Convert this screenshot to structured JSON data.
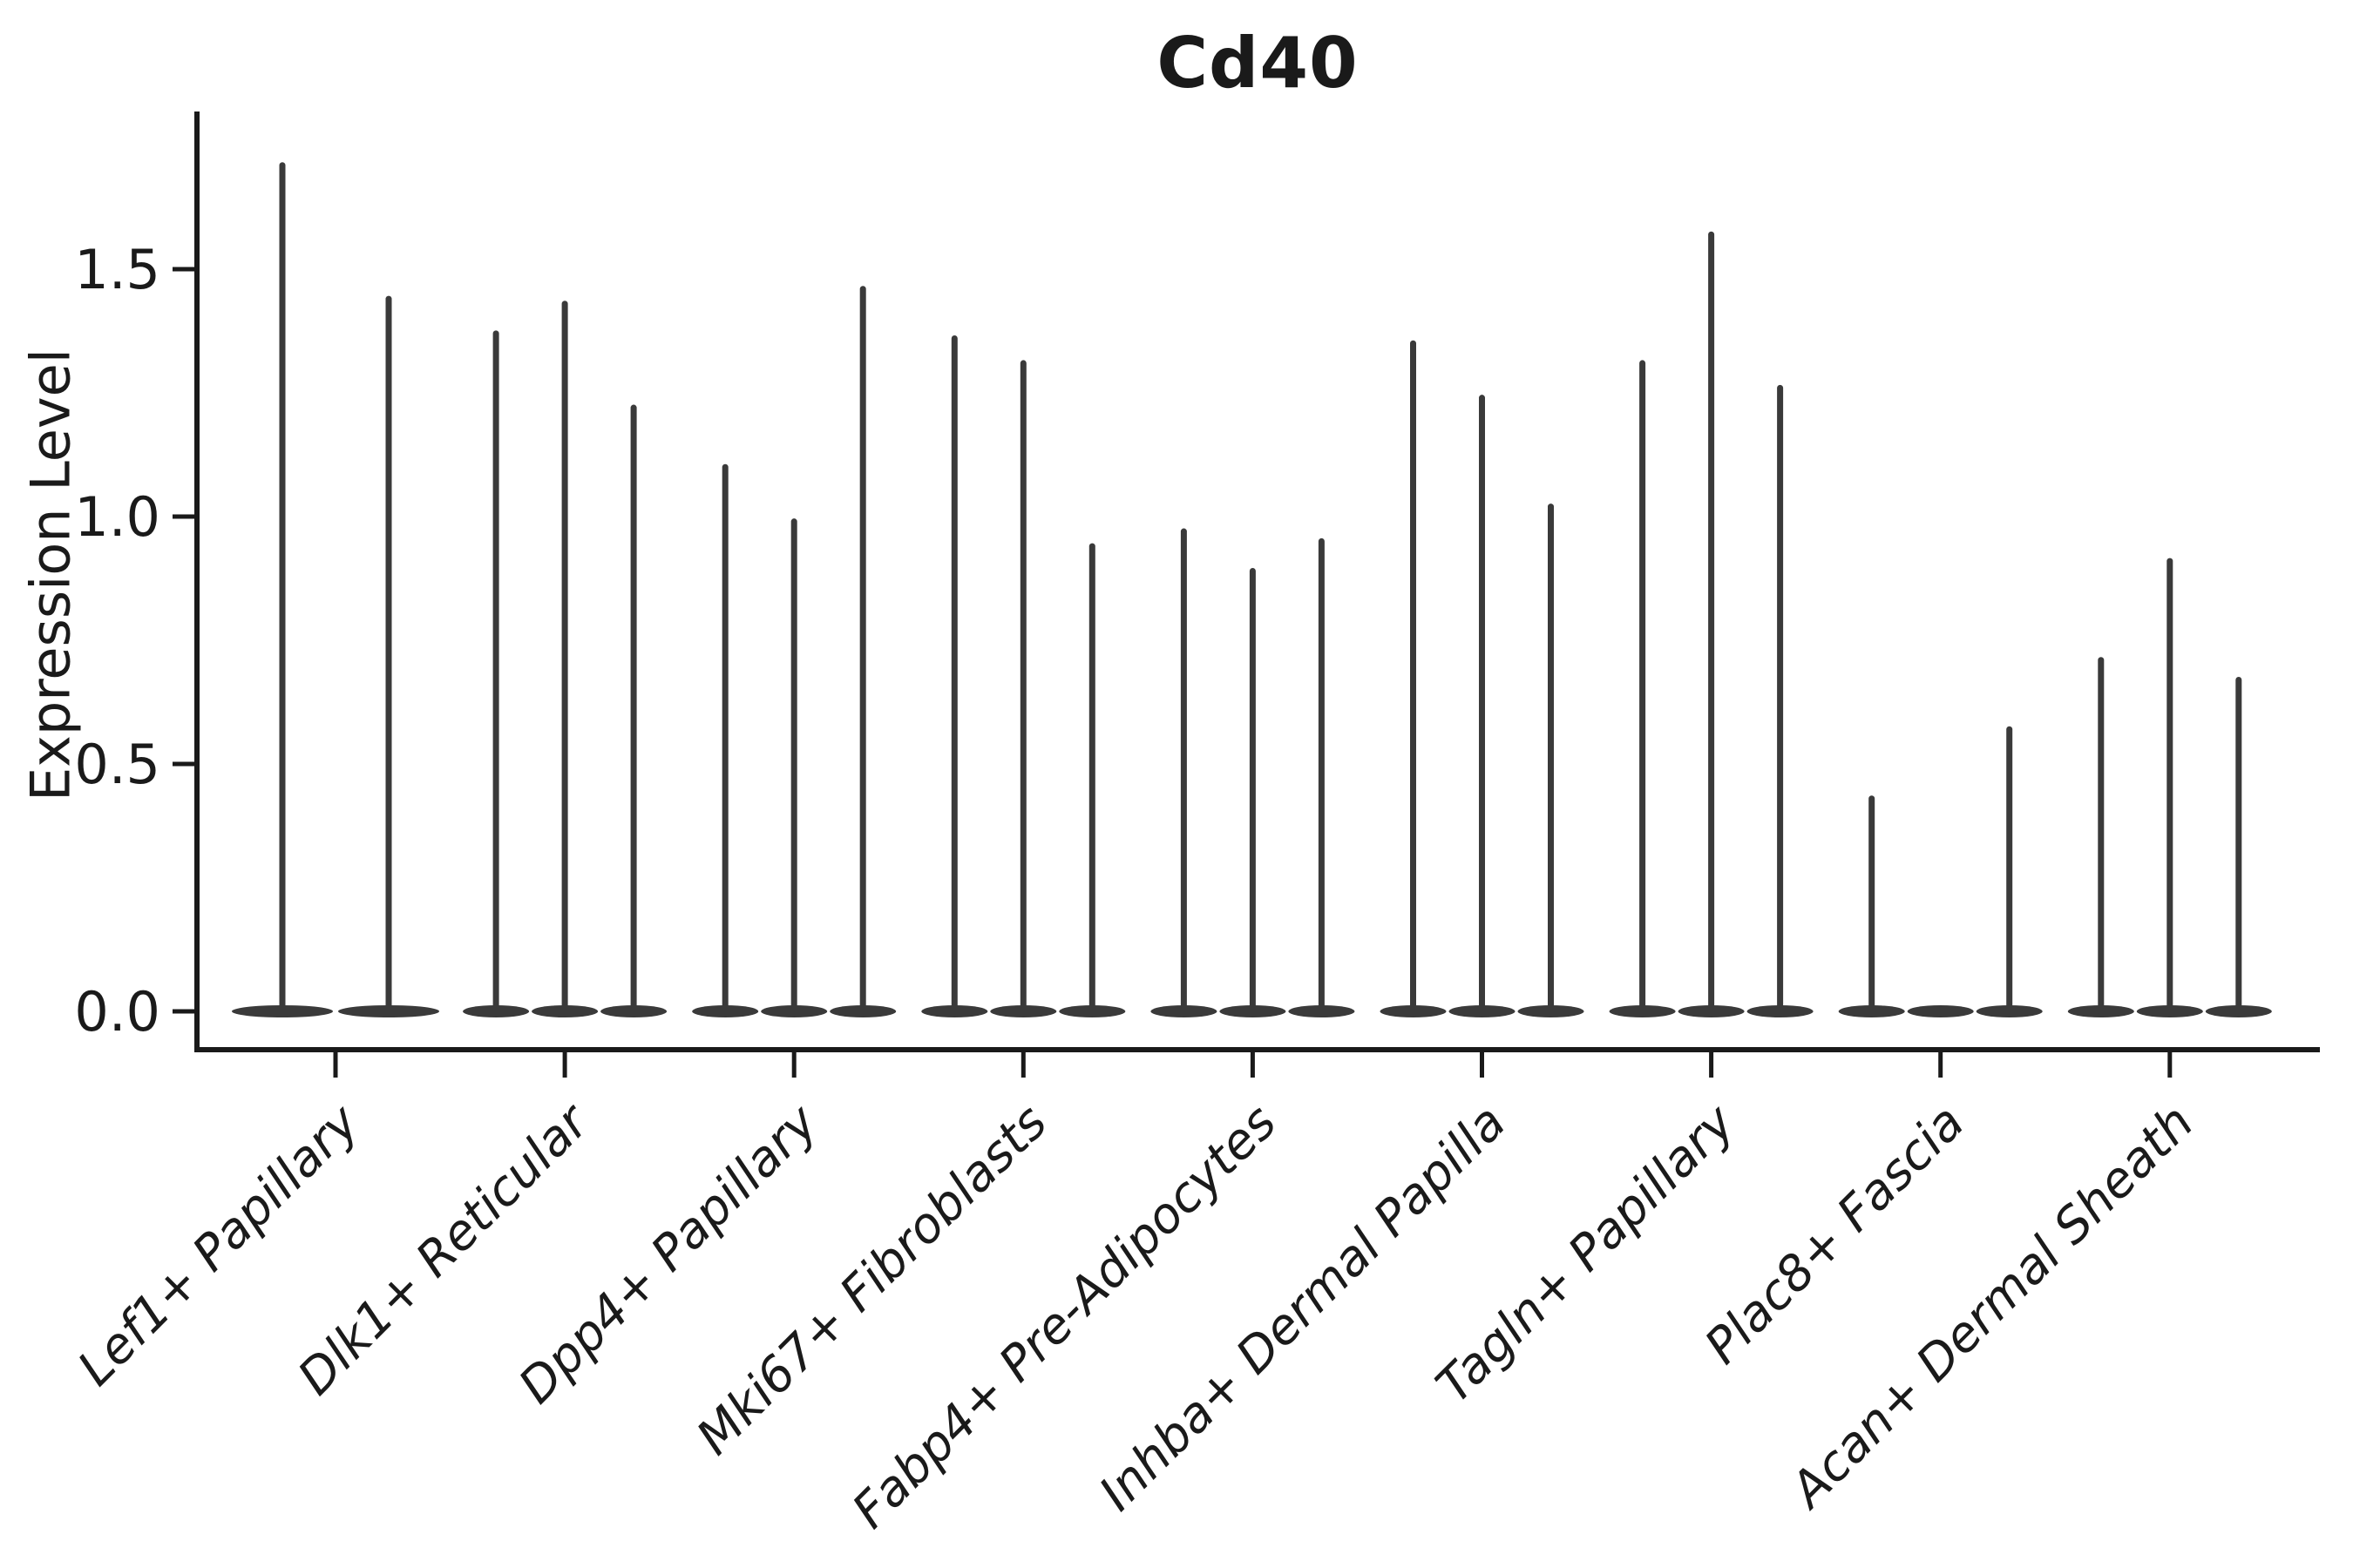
{
  "chart_data": {
    "type": "violin",
    "title": "Cd40",
    "xlabel": "",
    "ylabel": "Expression Level",
    "ytick_labels": [
      "0.0",
      "0.5",
      "1.0",
      "1.5"
    ],
    "ytick_values": [
      0.0,
      0.5,
      1.0,
      1.5
    ],
    "ylim": [
      -0.08,
      1.81
    ],
    "grid": false,
    "legend": null,
    "categories": [
      "Lef1+ Papillary",
      "Dlk1+ Reticular",
      "Dpp4+ Papillary",
      "Mki67+ Fibroblasts",
      "Fabp4+ Pre-Adipocytes",
      "Inhba+ Dermal Papilla",
      "Tagln+ Papillary",
      "Plac8+ Fascia",
      "Acan+ Dermal Sheath"
    ],
    "violins": [
      {
        "category": "Lef1+ Papillary",
        "max_expression": [
          1.71,
          1.44
        ]
      },
      {
        "category": "Dlk1+ Reticular",
        "max_expression": [
          1.37,
          1.43,
          1.22
        ]
      },
      {
        "category": "Dpp4+ Papillary",
        "max_expression": [
          1.1,
          0.99,
          1.46
        ]
      },
      {
        "category": "Mki67+ Fibroblasts",
        "max_expression": [
          1.36,
          1.31,
          0.94
        ]
      },
      {
        "category": "Fabp4+ Pre-Adipocytes",
        "max_expression": [
          0.97,
          0.89,
          0.95
        ]
      },
      {
        "category": "Inhba+ Dermal Papilla",
        "max_expression": [
          1.35,
          1.24,
          1.02
        ]
      },
      {
        "category": "Tagln+ Papillary",
        "max_expression": [
          1.31,
          1.57,
          1.26
        ]
      },
      {
        "category": "Plac8+ Fascia",
        "max_expression": [
          0.43,
          0.0,
          0.57
        ]
      },
      {
        "category": "Acan+ Dermal Sheath",
        "max_expression": [
          0.71,
          0.91,
          0.67
        ]
      }
    ],
    "style": {
      "violin_color": "#3a3a3a",
      "axis_color": "#1a1a1a",
      "background": "#ffffff"
    }
  }
}
